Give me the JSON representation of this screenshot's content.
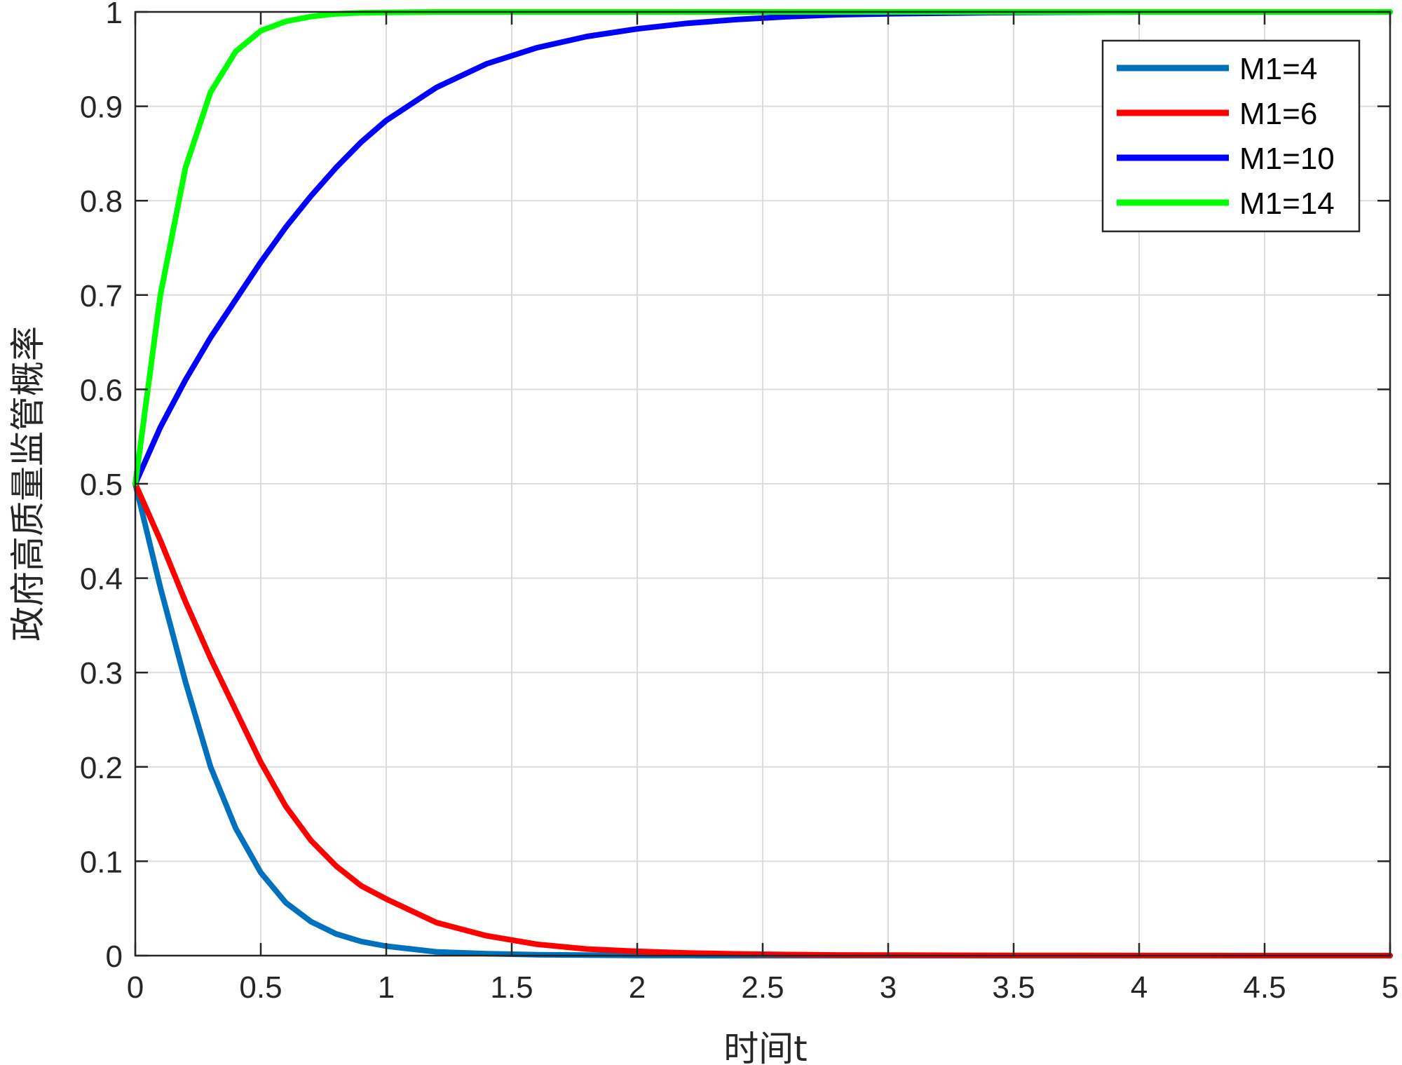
{
  "chart_data": {
    "type": "line",
    "xlabel": "时间t",
    "ylabel": "政府高质量监管概率",
    "xlim": [
      0,
      5
    ],
    "ylim": [
      0,
      1
    ],
    "x_ticks": [
      "0",
      "0.5",
      "1",
      "1.5",
      "2",
      "2.5",
      "3",
      "3.5",
      "4",
      "4.5",
      "5"
    ],
    "y_ticks": [
      "0",
      "0.1",
      "0.2",
      "0.3",
      "0.4",
      "0.5",
      "0.6",
      "0.7",
      "0.8",
      "0.9",
      "1"
    ],
    "grid": true,
    "legend_position": "top-right",
    "x": [
      0,
      0.1,
      0.2,
      0.3,
      0.4,
      0.5,
      0.6,
      0.7,
      0.8,
      0.9,
      1,
      1.2,
      1.4,
      1.6,
      1.8,
      2,
      2.2,
      2.4,
      2.6,
      2.8,
      3,
      3.5,
      4,
      4.5,
      5
    ],
    "series": [
      {
        "name": "M1=4",
        "color": "#0072BD",
        "values": [
          0.5,
          0.39,
          0.29,
          0.2,
          0.135,
          0.088,
          0.056,
          0.036,
          0.023,
          0.015,
          0.01,
          0.004,
          0.002,
          0.001,
          0.0005,
          0.0002,
          0.0001,
          0,
          0,
          0,
          0,
          0,
          0,
          0,
          0
        ]
      },
      {
        "name": "M1=6",
        "color": "#FF0000",
        "values": [
          0.5,
          0.44,
          0.375,
          0.315,
          0.26,
          0.205,
          0.158,
          0.122,
          0.095,
          0.074,
          0.06,
          0.035,
          0.021,
          0.012,
          0.007,
          0.0045,
          0.0028,
          0.0018,
          0.0011,
          0.0007,
          0.0005,
          0.0002,
          0.0001,
          0,
          0
        ]
      },
      {
        "name": "M1=10",
        "color": "#0000FF",
        "values": [
          0.5,
          0.56,
          0.61,
          0.655,
          0.695,
          0.735,
          0.772,
          0.805,
          0.835,
          0.862,
          0.885,
          0.92,
          0.945,
          0.962,
          0.974,
          0.982,
          0.988,
          0.992,
          0.995,
          0.997,
          0.998,
          0.9995,
          1,
          1,
          1
        ]
      },
      {
        "name": "M1=14",
        "color": "#00FF00",
        "values": [
          0.5,
          0.7,
          0.835,
          0.915,
          0.958,
          0.98,
          0.99,
          0.995,
          0.998,
          0.999,
          0.9995,
          1,
          1,
          1,
          1,
          1,
          1,
          1,
          1,
          1,
          1,
          1,
          1,
          1,
          1
        ]
      }
    ]
  }
}
